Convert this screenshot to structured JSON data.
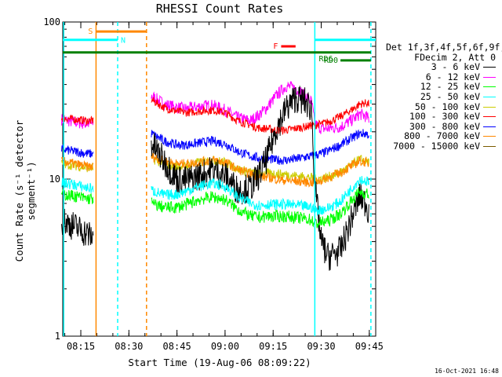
{
  "chart_data": {
    "type": "line",
    "title": "RHESSI Count Rates",
    "xlabel": "Start Time (19-Aug-06 08:09:22)",
    "ylabel": "Count Rate (s⁻¹ detector segment⁻¹)",
    "yscale": "log",
    "ylim": [
      1,
      100
    ],
    "y_ticks": [
      1,
      10,
      100
    ],
    "y_tick_labels": [
      "1",
      "10",
      "100"
    ],
    "xlim": [
      "08:09:22",
      "09:47:00"
    ],
    "x_ticks": [
      "08:15",
      "08:30",
      "08:45",
      "09:00",
      "09:15",
      "09:30",
      "09:45"
    ],
    "legend_header": [
      "Det 1f,3f,4f,5f,6f,9f,",
      "FDecim 2, Att 0"
    ],
    "series": [
      {
        "name": "3 - 6 keV",
        "color": "#000000",
        "x": [
          "08:09",
          "08:13",
          "08:17",
          "08:19",
          "08:35",
          "08:37",
          "08:41",
          "08:45",
          "08:48",
          "08:52",
          "08:56",
          "09:00",
          "09:04",
          "09:08",
          "09:11",
          "09:13",
          "09:16",
          "09:19",
          "09:22",
          "09:25",
          "09:27",
          "09:28",
          "09:30",
          "09:32",
          "09:36",
          "09:40",
          "09:42",
          "09:44",
          "09:45"
        ],
        "y": [
          5.5,
          5.0,
          4.5,
          4.2,
          null,
          17.0,
          13.0,
          10.0,
          9.8,
          10.5,
          11.5,
          10.5,
          8.5,
          8.8,
          11.0,
          13.5,
          21.0,
          28.0,
          33.0,
          31.0,
          28.0,
          9.0,
          4.0,
          3.2,
          3.5,
          6.0,
          7.8,
          7.0,
          6.0
        ]
      },
      {
        "name": "6 - 12 keV",
        "color": "#ff00ff",
        "x": [
          "08:09",
          "08:13",
          "08:17",
          "08:19",
          "08:35",
          "08:37",
          "08:41",
          "08:45",
          "08:48",
          "08:52",
          "08:56",
          "09:00",
          "09:04",
          "09:08",
          "09:11",
          "09:13",
          "09:16",
          "09:19",
          "09:22",
          "09:25",
          "09:27",
          "09:28",
          "09:30",
          "09:32",
          "09:36",
          "09:40",
          "09:42",
          "09:44",
          "09:45"
        ],
        "y": [
          24.0,
          23.0,
          22.5,
          22.5,
          null,
          34.0,
          30.0,
          28.5,
          28.0,
          29.0,
          29.5,
          27.5,
          24.5,
          23.5,
          26.0,
          28.5,
          34.0,
          39.0,
          38.0,
          34.0,
          31.0,
          22.5,
          21.0,
          21.0,
          21.5,
          24.0,
          26.0,
          25.0,
          24.0
        ]
      },
      {
        "name": "12 - 25 keV",
        "color": "#00ff00",
        "x": [
          "08:09",
          "08:13",
          "08:17",
          "08:19",
          "08:35",
          "08:37",
          "08:41",
          "08:45",
          "08:48",
          "08:52",
          "08:56",
          "09:00",
          "09:04",
          "09:08",
          "09:11",
          "09:13",
          "09:16",
          "09:19",
          "09:22",
          "09:25",
          "09:27",
          "09:28",
          "09:30",
          "09:32",
          "09:36",
          "09:40",
          "09:42",
          "09:44",
          "09:45"
        ],
        "y": [
          8.0,
          7.8,
          7.5,
          7.5,
          null,
          7.0,
          6.6,
          6.6,
          6.9,
          7.4,
          7.7,
          7.4,
          6.4,
          5.8,
          5.7,
          5.8,
          5.8,
          5.8,
          5.7,
          5.6,
          5.5,
          5.2,
          5.3,
          5.4,
          6.0,
          7.5,
          8.3,
          8.1,
          8.0
        ]
      },
      {
        "name": "25 - 50 keV",
        "color": "#00ffff",
        "x": [
          "08:09",
          "08:13",
          "08:17",
          "08:19",
          "08:35",
          "08:37",
          "08:41",
          "08:45",
          "08:48",
          "08:52",
          "08:56",
          "09:00",
          "09:04",
          "09:08",
          "09:11",
          "09:13",
          "09:16",
          "09:19",
          "09:22",
          "09:25",
          "09:27",
          "09:28",
          "09:30",
          "09:32",
          "09:36",
          "09:40",
          "09:42",
          "09:44",
          "09:45"
        ],
        "y": [
          9.5,
          9.2,
          8.8,
          8.7,
          null,
          8.5,
          7.9,
          8.0,
          8.4,
          9.0,
          9.4,
          9.0,
          7.7,
          7.0,
          6.8,
          6.9,
          6.9,
          6.9,
          6.8,
          6.7,
          6.6,
          6.3,
          6.4,
          6.5,
          7.2,
          9.0,
          10.0,
          9.7,
          9.5
        ]
      },
      {
        "name": "50 - 100 keV",
        "color": "#cccc00",
        "x": [
          "08:09",
          "08:13",
          "08:17",
          "08:19",
          "08:35",
          "08:37",
          "08:41",
          "08:45",
          "08:48",
          "08:52",
          "08:56",
          "09:00",
          "09:04",
          "09:08",
          "09:11",
          "09:13",
          "09:16",
          "09:19",
          "09:22",
          "09:25",
          "09:27",
          "09:28",
          "09:30",
          "09:32",
          "09:36",
          "09:40",
          "09:42",
          "09:44",
          "09:45"
        ],
        "y": [
          12.5,
          12.2,
          11.8,
          11.8,
          null,
          13.5,
          12.5,
          12.0,
          12.2,
          12.8,
          13.2,
          12.8,
          11.6,
          11.0,
          10.8,
          10.9,
          10.8,
          10.7,
          10.5,
          10.3,
          10.2,
          10.0,
          10.1,
          10.3,
          11.0,
          12.5,
          13.4,
          13.0,
          12.8
        ]
      },
      {
        "name": "100 - 300 keV",
        "color": "#ff0000",
        "x": [
          "08:09",
          "08:13",
          "08:17",
          "08:19",
          "08:35",
          "08:37",
          "08:41",
          "08:45",
          "08:48",
          "08:52",
          "08:56",
          "09:00",
          "09:04",
          "09:08",
          "09:11",
          "09:13",
          "09:16",
          "09:19",
          "09:22",
          "09:25",
          "09:27",
          "09:28",
          "09:30",
          "09:32",
          "09:36",
          "09:40",
          "09:42",
          "09:44",
          "09:45"
        ],
        "y": [
          24.5,
          24.0,
          23.5,
          23.5,
          null,
          32.0,
          28.5,
          27.0,
          26.5,
          27.0,
          27.5,
          26.5,
          23.5,
          22.0,
          21.0,
          21.0,
          20.5,
          20.5,
          21.0,
          21.5,
          22.0,
          22.0,
          22.5,
          23.0,
          25.0,
          28.0,
          30.0,
          30.5,
          30.0
        ]
      },
      {
        "name": "300 - 800 keV",
        "color": "#0000ff",
        "x": [
          "08:09",
          "08:13",
          "08:17",
          "08:19",
          "08:35",
          "08:37",
          "08:41",
          "08:45",
          "08:48",
          "08:52",
          "08:56",
          "09:00",
          "09:04",
          "09:08",
          "09:11",
          "09:13",
          "09:16",
          "09:19",
          "09:22",
          "09:25",
          "09:27",
          "09:28",
          "09:30",
          "09:32",
          "09:36",
          "09:40",
          "09:42",
          "09:44",
          "09:45"
        ],
        "y": [
          15.5,
          15.0,
          14.5,
          14.5,
          null,
          19.5,
          17.5,
          16.5,
          16.5,
          17.0,
          17.5,
          16.8,
          15.0,
          14.0,
          13.5,
          13.5,
          13.2,
          13.2,
          13.4,
          13.8,
          14.0,
          14.2,
          14.5,
          15.0,
          16.5,
          18.5,
          19.5,
          19.5,
          19.0
        ]
      },
      {
        "name": "800 - 7000 keV",
        "color": "#ff8800",
        "x": [
          "08:09",
          "08:13",
          "08:17",
          "08:19",
          "08:35",
          "08:37",
          "08:41",
          "08:45",
          "08:48",
          "08:52",
          "08:56",
          "09:00",
          "09:04",
          "09:08",
          "09:11",
          "09:13",
          "09:16",
          "09:19",
          "09:22",
          "09:25",
          "09:27",
          "09:28",
          "09:30",
          "09:32",
          "09:36",
          "09:40",
          "09:42",
          "09:44",
          "09:45"
        ],
        "y": [
          13.0,
          12.5,
          12.0,
          12.0,
          null,
          14.0,
          13.0,
          12.5,
          12.5,
          12.8,
          13.2,
          12.8,
          11.5,
          10.8,
          10.3,
          10.3,
          10.0,
          9.8,
          9.7,
          9.6,
          9.5,
          9.6,
          9.8,
          10.2,
          11.0,
          12.3,
          13.0,
          12.8,
          12.5
        ]
      },
      {
        "name": "7000 - 15000 keV",
        "color": "#7a5a00",
        "x": [],
        "y": []
      }
    ],
    "annotations": {
      "S": {
        "label": "S",
        "color": "#ff8800",
        "start": "08:19:45",
        "end": "08:35:30",
        "value": 87
      },
      "N": {
        "label": "N",
        "color": "#00ffff",
        "start": "08:09:22",
        "end": "08:26:30",
        "value": 77
      },
      "F": {
        "label": "F",
        "color": "#ff0000",
        "start": "09:17:30",
        "end": "09:22:00",
        "value": 70
      },
      "RD0": {
        "label": "RD0",
        "color": "#008000",
        "start": "09:36:00",
        "end": "09:45:30",
        "value": 57
      },
      "RD6": {
        "label": "RD6",
        "color": "#008000",
        "start": "08:09:22",
        "end": "09:45:30",
        "value": 64
      },
      "N2": {
        "label": "",
        "color": "#00ffff",
        "start": "09:28:00",
        "end": "09:47:00",
        "value": 77
      }
    },
    "vertical_lines": [
      {
        "time": "08:09:40",
        "color": "#00ffff",
        "style": "solid"
      },
      {
        "time": "08:19:45",
        "color": "#ff8800",
        "style": "solid"
      },
      {
        "time": "08:26:30",
        "color": "#00ffff",
        "style": "dashed"
      },
      {
        "time": "08:35:30",
        "color": "#ff8800",
        "style": "dashed"
      },
      {
        "time": "09:28:00",
        "color": "#00ffff",
        "style": "solid"
      },
      {
        "time": "09:45:30",
        "color": "#00ffff",
        "style": "dashed"
      }
    ],
    "grid": false
  },
  "footer": "16-Oct-2021 16:48"
}
